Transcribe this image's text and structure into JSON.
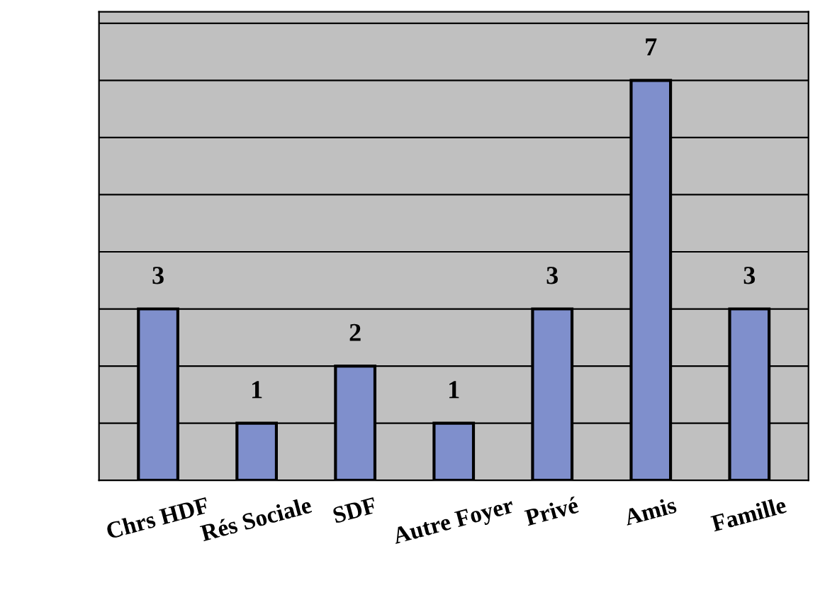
{
  "chart_data": {
    "type": "bar",
    "categories": [
      "Chrs HDF",
      "Rés Sociale",
      "SDF",
      "Autre Foyer",
      "Privé",
      "Amis",
      "Famille"
    ],
    "values": [
      3,
      1,
      2,
      1,
      3,
      7,
      3
    ],
    "color": "#7f8fcc",
    "data_labels": true,
    "ylim": [
      0,
      8.2
    ],
    "yticks": [
      {
        "value": 0,
        "label": null
      },
      {
        "value": 1,
        "label": null
      },
      {
        "value": 2,
        "label": null
      },
      {
        "value": 3,
        "label": null
      },
      {
        "value": 4,
        "label": null
      },
      {
        "value": 5,
        "label": null
      },
      {
        "value": 6,
        "label": null
      },
      {
        "value": 7,
        "label": null
      },
      {
        "value": 8,
        "label": null
      }
    ],
    "grid": "y",
    "tick_labels": "x"
  }
}
